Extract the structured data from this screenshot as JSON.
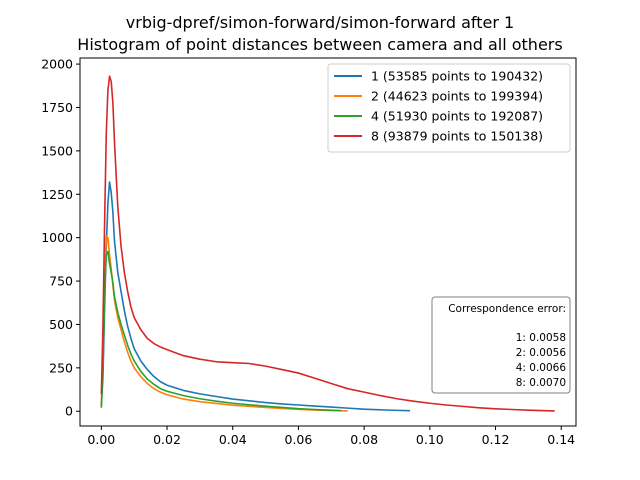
{
  "chart_data": {
    "type": "line",
    "title_line1": "vrbig-dpref/simon-forward/simon-forward after 1",
    "title_line2": "Histogram of point distances between camera and all others",
    "xlabel": "",
    "ylabel": "",
    "xlim": [
      -0.0065,
      0.1445
    ],
    "ylim": [
      -85,
      2035
    ],
    "x_ticks": [
      "0.00",
      "0.02",
      "0.04",
      "0.06",
      "0.08",
      "0.10",
      "0.12",
      "0.14"
    ],
    "x_tick_values": [
      0,
      0.02,
      0.04,
      0.06,
      0.08,
      0.1,
      0.12,
      0.14
    ],
    "y_ticks": [
      "0",
      "250",
      "500",
      "750",
      "1000",
      "1250",
      "1500",
      "1750",
      "2000"
    ],
    "y_tick_values": [
      0,
      250,
      500,
      750,
      1000,
      1250,
      1500,
      1750,
      2000
    ],
    "grid": false,
    "legend_position": "top-right",
    "series": [
      {
        "name": "1 (53585 points to 190432)",
        "color": "#1f77b4",
        "x": [
          0.0,
          0.0005,
          0.001,
          0.0015,
          0.002,
          0.0025,
          0.003,
          0.0035,
          0.004,
          0.005,
          0.006,
          0.007,
          0.008,
          0.009,
          0.01,
          0.012,
          0.014,
          0.016,
          0.018,
          0.02,
          0.025,
          0.03,
          0.035,
          0.04,
          0.045,
          0.05,
          0.055,
          0.06,
          0.065,
          0.07,
          0.075,
          0.08,
          0.085,
          0.09,
          0.094
        ],
        "y": [
          30,
          200,
          600,
          950,
          1200,
          1320,
          1260,
          1150,
          980,
          800,
          690,
          580,
          490,
          420,
          360,
          290,
          240,
          200,
          170,
          150,
          120,
          100,
          85,
          70,
          60,
          50,
          42,
          36,
          30,
          24,
          18,
          12,
          8,
          5,
          3
        ]
      },
      {
        "name": "2 (44623 points to 199394)",
        "color": "#ff7f0e",
        "x": [
          0.0,
          0.0005,
          0.001,
          0.0015,
          0.002,
          0.0025,
          0.003,
          0.0035,
          0.004,
          0.005,
          0.006,
          0.007,
          0.008,
          0.009,
          0.01,
          0.012,
          0.014,
          0.016,
          0.018,
          0.02,
          0.025,
          0.03,
          0.035,
          0.04,
          0.045,
          0.05,
          0.055,
          0.06,
          0.065,
          0.07,
          0.075
        ],
        "y": [
          40,
          300,
          750,
          1010,
          1000,
          900,
          820,
          730,
          640,
          540,
          470,
          400,
          340,
          290,
          250,
          200,
          160,
          130,
          110,
          95,
          70,
          55,
          45,
          35,
          28,
          22,
          16,
          11,
          7,
          4,
          2
        ]
      },
      {
        "name": "4 (51930 points to 192087)",
        "color": "#2ca02c",
        "x": [
          0.0,
          0.0005,
          0.001,
          0.0015,
          0.002,
          0.0025,
          0.003,
          0.0035,
          0.004,
          0.005,
          0.006,
          0.007,
          0.008,
          0.009,
          0.01,
          0.012,
          0.014,
          0.016,
          0.018,
          0.02,
          0.025,
          0.03,
          0.035,
          0.04,
          0.045,
          0.05,
          0.055,
          0.06,
          0.065,
          0.07,
          0.073
        ],
        "y": [
          20,
          250,
          700,
          900,
          920,
          850,
          800,
          740,
          660,
          570,
          500,
          440,
          380,
          330,
          290,
          230,
          185,
          155,
          130,
          115,
          90,
          72,
          58,
          46,
          37,
          29,
          22,
          15,
          10,
          6,
          3
        ]
      },
      {
        "name": "8 (93879 points to 150138)",
        "color": "#d62728",
        "x": [
          0.0,
          0.0005,
          0.001,
          0.0015,
          0.002,
          0.0025,
          0.003,
          0.0035,
          0.004,
          0.005,
          0.006,
          0.007,
          0.008,
          0.009,
          0.01,
          0.012,
          0.014,
          0.016,
          0.018,
          0.02,
          0.025,
          0.03,
          0.035,
          0.04,
          0.045,
          0.05,
          0.055,
          0.06,
          0.065,
          0.07,
          0.075,
          0.08,
          0.085,
          0.09,
          0.095,
          0.1,
          0.105,
          0.11,
          0.115,
          0.12,
          0.125,
          0.13,
          0.135,
          0.138
        ],
        "y": [
          100,
          500,
          1100,
          1600,
          1850,
          1930,
          1900,
          1780,
          1550,
          1180,
          950,
          800,
          690,
          600,
          540,
          470,
          420,
          390,
          370,
          355,
          320,
          300,
          285,
          280,
          275,
          260,
          240,
          220,
          190,
          160,
          130,
          110,
          90,
          72,
          58,
          46,
          36,
          28,
          20,
          14,
          10,
          6,
          3,
          2
        ]
      }
    ],
    "annotation": {
      "title": "Correspondence error:",
      "lines": [
        "1: 0.0058",
        "2: 0.0056",
        "4: 0.0066",
        "8: 0.0070"
      ]
    }
  }
}
